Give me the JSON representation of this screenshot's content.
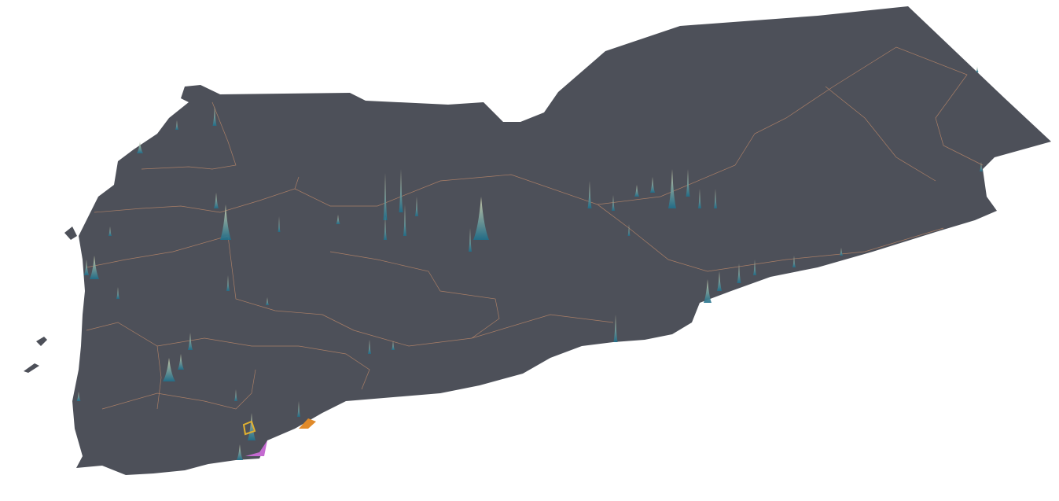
{
  "map": {
    "background_color": "#ffffff",
    "land_color": "#4d5059",
    "border_color": "#c08a6a",
    "spike_color_low": "#1f6f8b",
    "spike_color_high": "#d8d6b0",
    "highlight_colors": [
      "#e08a2a",
      "#c46ad0",
      "#e0b030"
    ]
  }
}
